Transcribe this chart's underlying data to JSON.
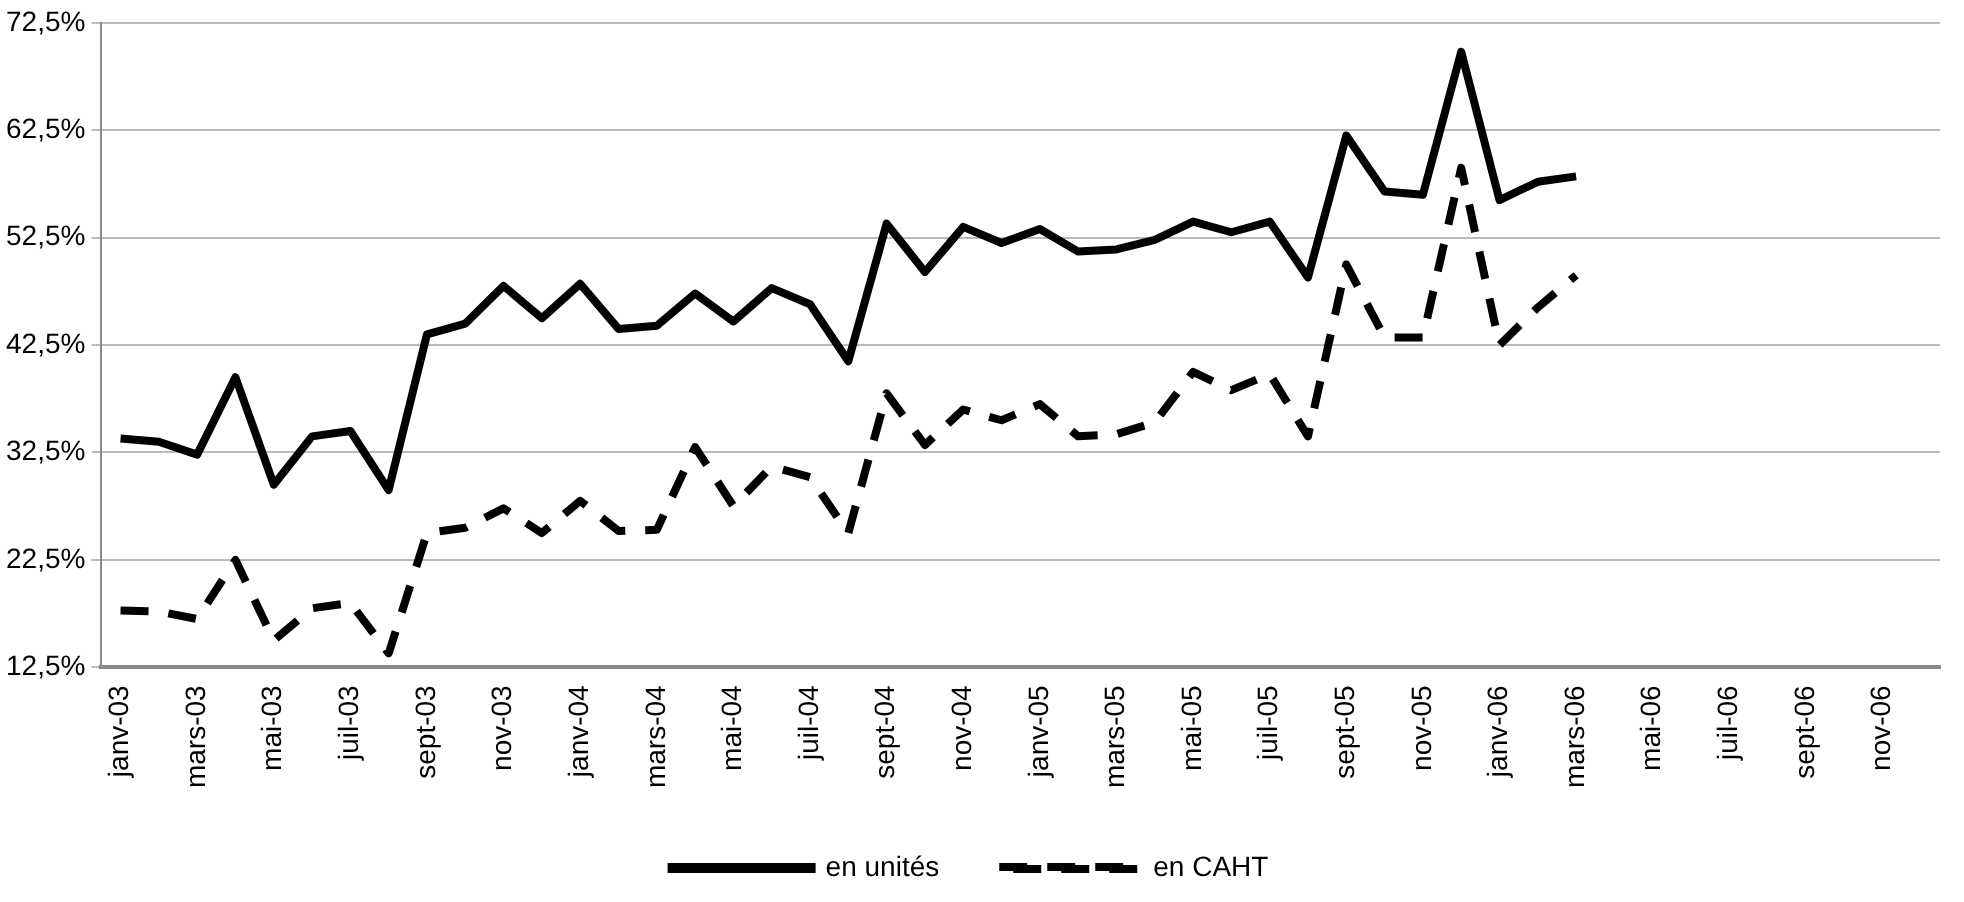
{
  "chart_data": {
    "type": "line",
    "categories": [
      "janv-03",
      null,
      "mars-03",
      null,
      "mai-03",
      null,
      "juil-03",
      null,
      "sept-03",
      null,
      "nov-03",
      null,
      "janv-04",
      null,
      "mars-04",
      null,
      "mai-04",
      null,
      "juil-04",
      null,
      "sept-04",
      null,
      "nov-04",
      null,
      "janv-05",
      null,
      "mars-05",
      null,
      "mai-05",
      null,
      "juil-05",
      null,
      "sept-05",
      null,
      "nov-05",
      null,
      "janv-06",
      null,
      "mars-06",
      null,
      "mai-06",
      null,
      "juil-06",
      null,
      "sept-06",
      null,
      "nov-06",
      null
    ],
    "series": [
      {
        "name": "en unités",
        "color": "#000000",
        "line_style": "solid",
        "values": [
          33.8,
          33.5,
          32.3,
          39.5,
          29.5,
          34,
          34.5,
          29,
          43.5,
          44.5,
          48,
          45,
          48.2,
          44,
          44.3,
          47.3,
          44.7,
          47.8,
          46.3,
          41,
          53.8,
          49.3,
          53.5,
          52,
          53.3,
          51.2,
          51.4,
          52.3,
          54,
          53,
          54,
          48.8,
          62,
          56.8,
          56.5,
          69.8,
          56,
          57.7,
          58.2,
          null,
          null,
          null,
          null,
          null,
          null,
          null,
          null,
          null
        ]
      },
      {
        "name": "en CAHT",
        "color": "#000000",
        "line_style": "dashed",
        "values": [
          17.8,
          17.7,
          17,
          22.5,
          15,
          18,
          18.5,
          13.8,
          25,
          25.5,
          27.3,
          25,
          28,
          25.2,
          25.3,
          33,
          27.5,
          31.2,
          30.2,
          25,
          38,
          33.2,
          36.5,
          35.5,
          37,
          34,
          34.2,
          35.3,
          40,
          38.3,
          39.8,
          34,
          50,
          43.2,
          43.2,
          59,
          42.5,
          46,
          49,
          null,
          null,
          null,
          null,
          null,
          null,
          null,
          null,
          null
        ]
      }
    ],
    "ylim": [
      12.5,
      72.5
    ],
    "yticks": [
      {
        "value": 12.5,
        "label": "12,5%"
      },
      {
        "value": 22.5,
        "label": "22,5%"
      },
      {
        "value": 32.5,
        "label": "32,5%"
      },
      {
        "value": 42.5,
        "label": "42,5%"
      },
      {
        "value": 52.5,
        "label": "52,5%"
      },
      {
        "value": 62.5,
        "label": "62,5%"
      },
      {
        "value": 72.5,
        "label": "72,5%"
      }
    ],
    "grid": "y",
    "legend": "bottom",
    "marker": "none"
  }
}
